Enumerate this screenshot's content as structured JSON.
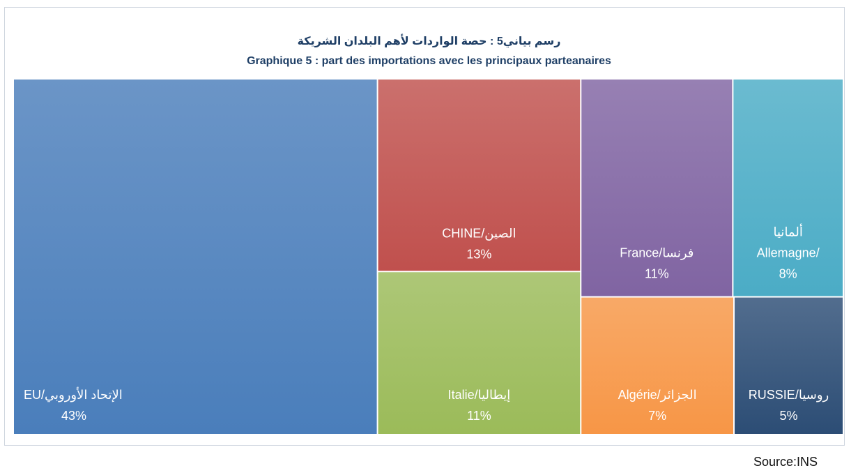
{
  "chart_data": {
    "type": "treemap",
    "title_ar": "رسم بياني5 :  حصة الواردات لأهم البلدان الشريكة",
    "title_fr": "Graphique 5 : part des importations avec les principaux parteanaires",
    "items": [
      {
        "label": "EU/الإتحاد الأوروبي",
        "value": 43,
        "value_label": "43%",
        "color": "#4a7ebb"
      },
      {
        "label": "CHINE/الصين",
        "value": 13,
        "value_label": "13%",
        "color": "#c0504d"
      },
      {
        "label": "Italie/إيطاليا",
        "value": 11,
        "value_label": "11%",
        "color": "#9bbb59"
      },
      {
        "label": "France/فرنسا",
        "value": 11,
        "value_label": "11%",
        "color": "#8064a2"
      },
      {
        "label": "Allemagne/ألمانيا",
        "label_line1": "ألمانيا",
        "label_line2": "Allemagne/",
        "value": 8,
        "value_label": "8%",
        "color": "#4bacc6"
      },
      {
        "label": "Algérie/الجزائر",
        "value": 7,
        "value_label": "7%",
        "color": "#f79646"
      },
      {
        "label": "RUSSIE/روسيا",
        "value": 5,
        "value_label": "5%",
        "color": "#2c4d75"
      }
    ]
  },
  "source": "Source:INS"
}
